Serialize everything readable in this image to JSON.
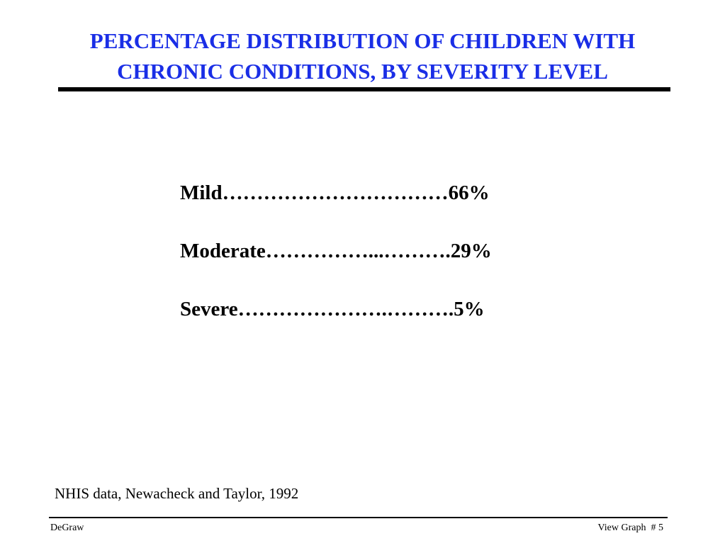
{
  "slide": {
    "title_line1": "PERCENTAGE DISTRIBUTION OF CHILDREN WITH",
    "title_line2": "CHRONIC CONDITIONS, BY SEVERITY LEVEL",
    "title_color": "#1a2ee6"
  },
  "rows": [
    {
      "text": "Mild……………………………66%",
      "label": "Mild",
      "value": "66%"
    },
    {
      "text": "Moderate……………...……….29%",
      "label": "Moderate",
      "value": "29%"
    },
    {
      "text": "Severe………………….……….5%",
      "label": "Severe",
      "value": "5%"
    }
  ],
  "source": "NHIS data, Newacheck and Taylor, 1992",
  "footer": {
    "left": "DeGraw",
    "right": "View Graph  # 5"
  }
}
